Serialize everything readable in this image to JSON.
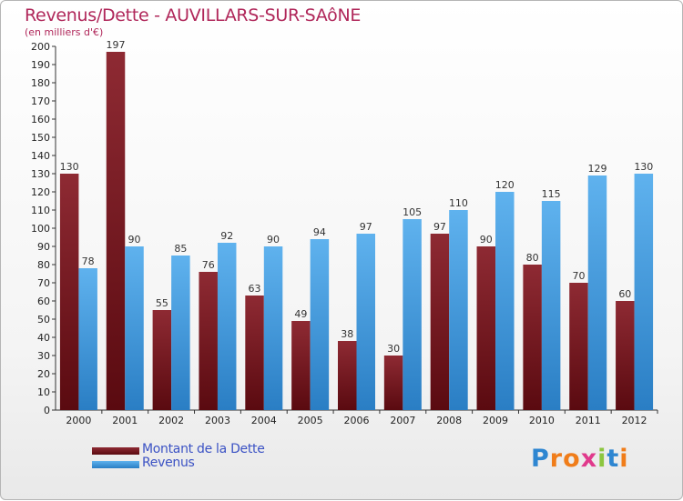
{
  "title": "Revenus/Dette - AUVILLARS-SUR-SAôNE",
  "subtitle": "(en milliers d'€)",
  "colors": {
    "dette": "#7a1a22",
    "revenus": "#4ea3e6",
    "title": "#b0275a",
    "legend_text": "#3b52c4"
  },
  "legend": {
    "dette_label": "Montant de la Dette",
    "revenus_label": "Revenus"
  },
  "logo": {
    "text": "Proxiti",
    "letters": [
      "P",
      "r",
      "o",
      "x",
      "i",
      "t",
      "i"
    ],
    "colors": [
      "#2e86d1",
      "#f07d1a",
      "#f07d1a",
      "#e03a8c",
      "#8cc63f",
      "#2e86d1",
      "#f07d1a"
    ]
  },
  "chart_data": {
    "type": "bar",
    "categories": [
      "2000",
      "2001",
      "2002",
      "2003",
      "2004",
      "2005",
      "2006",
      "2007",
      "2008",
      "2009",
      "2010",
      "2011",
      "2012"
    ],
    "series": [
      {
        "name": "Montant de la Dette",
        "values": [
          130,
          197,
          55,
          76,
          63,
          49,
          38,
          30,
          97,
          90,
          80,
          70,
          60
        ]
      },
      {
        "name": "Revenus",
        "values": [
          78,
          90,
          85,
          92,
          90,
          94,
          97,
          105,
          110,
          120,
          115,
          129,
          130
        ]
      }
    ],
    "ylim": [
      0,
      200
    ],
    "yticks": [
      0,
      10,
      20,
      30,
      40,
      50,
      60,
      70,
      80,
      90,
      100,
      110,
      120,
      130,
      140,
      150,
      160,
      170,
      180,
      190,
      200
    ],
    "grid": false,
    "legend_position": "bottom-left",
    "data_labels": true
  }
}
